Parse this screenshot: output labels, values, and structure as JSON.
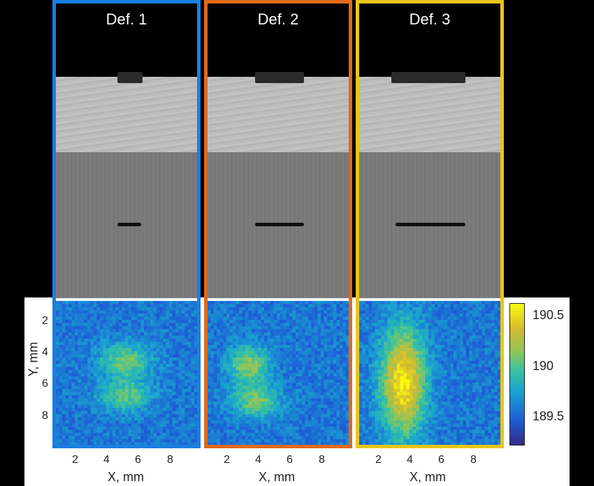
{
  "panels": [
    {
      "title": "Def. 1",
      "border_color": "#1a7fe0",
      "notch_width_frac": 0.17,
      "crack_width_frac": 0.17
    },
    {
      "title": "Def. 2",
      "border_color": "#e06a1a",
      "notch_width_frac": 0.34,
      "crack_width_frac": 0.34
    },
    {
      "title": "Def. 3",
      "border_color": "#e8c61a",
      "notch_width_frac": 0.51,
      "crack_width_frac": 0.49
    }
  ],
  "y_axis": {
    "label": "Y, mm",
    "ticks": [
      "2",
      "4",
      "6",
      "8"
    ]
  },
  "x_axis": {
    "label": "X, mm",
    "ticks": [
      "2",
      "4",
      "6",
      "8"
    ]
  },
  "colorbar": {
    "ticks": [
      "190.5",
      "190",
      "189.5"
    ],
    "colormap": "parula"
  }
}
